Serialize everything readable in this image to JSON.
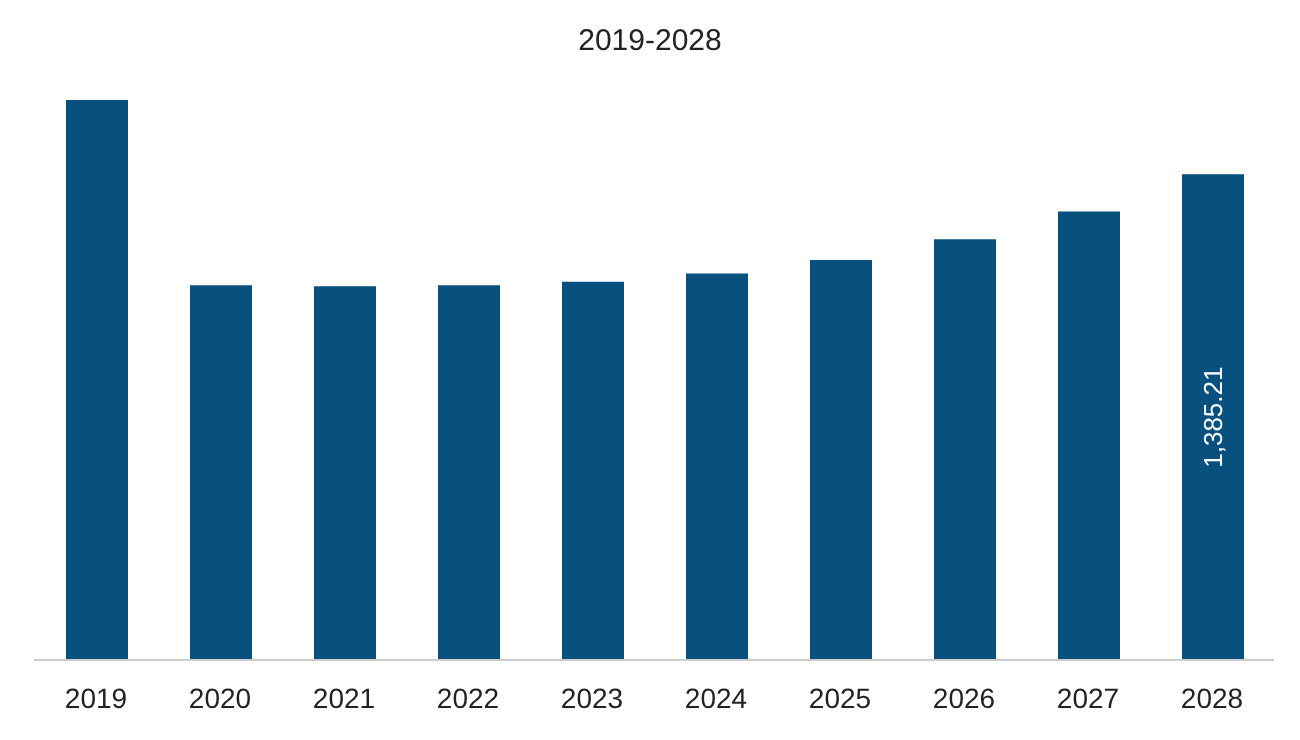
{
  "chart_data": {
    "type": "bar",
    "title": "2019-2028",
    "categories": [
      "2019",
      "2020",
      "2021",
      "2022",
      "2023",
      "2024",
      "2025",
      "2026",
      "2027",
      "2028"
    ],
    "values": [
      1597,
      1069,
      1066,
      1069,
      1079,
      1102,
      1141,
      1200,
      1279,
      1385.21
    ],
    "value_labels": [
      null,
      null,
      null,
      null,
      null,
      null,
      null,
      null,
      null,
      "1,385.21"
    ],
    "color": "#08517f",
    "grid": false
  }
}
